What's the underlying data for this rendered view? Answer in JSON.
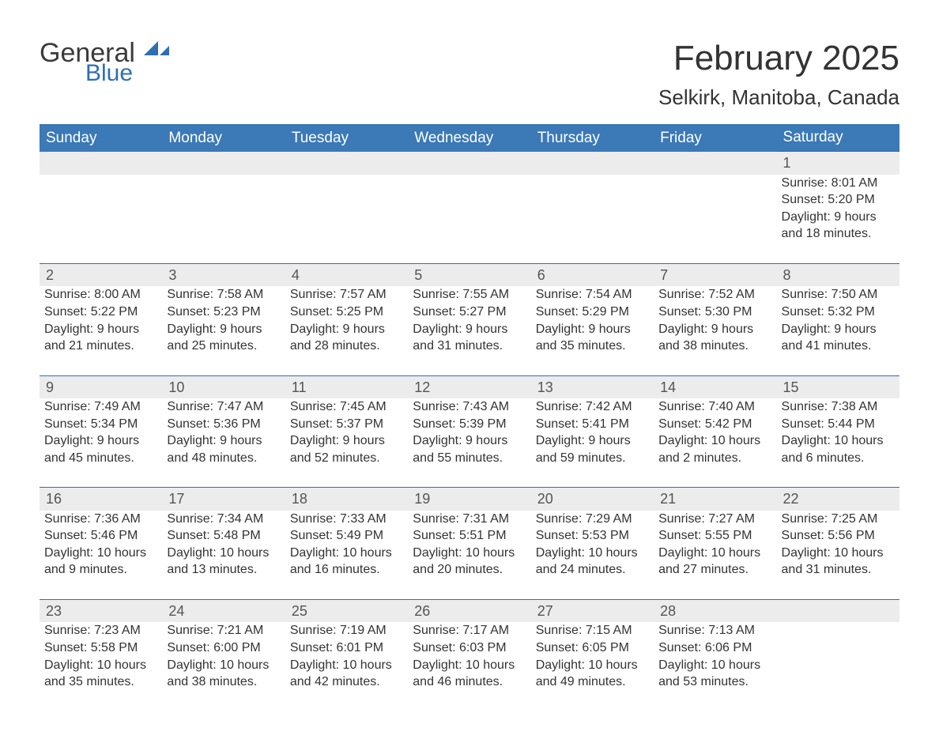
{
  "logo": {
    "word1": "General",
    "word2": "Blue"
  },
  "title": {
    "month": "February 2025",
    "location": "Selkirk, Manitoba, Canada"
  },
  "colors": {
    "header_bg": "#3b79b7",
    "header_text": "#ffffff",
    "row_divider": "#2d6fb5",
    "daynum_bg": "#ececec",
    "text": "#333333",
    "logo_blue": "#2d6fb5"
  },
  "columns": [
    "Sunday",
    "Monday",
    "Tuesday",
    "Wednesday",
    "Thursday",
    "Friday",
    "Saturday"
  ],
  "weeks": [
    [
      null,
      null,
      null,
      null,
      null,
      null,
      {
        "n": "1",
        "sunrise": "Sunrise: 8:01 AM",
        "sunset": "Sunset: 5:20 PM",
        "day1": "Daylight: 9 hours",
        "day2": "and 18 minutes."
      }
    ],
    [
      {
        "n": "2",
        "sunrise": "Sunrise: 8:00 AM",
        "sunset": "Sunset: 5:22 PM",
        "day1": "Daylight: 9 hours",
        "day2": "and 21 minutes."
      },
      {
        "n": "3",
        "sunrise": "Sunrise: 7:58 AM",
        "sunset": "Sunset: 5:23 PM",
        "day1": "Daylight: 9 hours",
        "day2": "and 25 minutes."
      },
      {
        "n": "4",
        "sunrise": "Sunrise: 7:57 AM",
        "sunset": "Sunset: 5:25 PM",
        "day1": "Daylight: 9 hours",
        "day2": "and 28 minutes."
      },
      {
        "n": "5",
        "sunrise": "Sunrise: 7:55 AM",
        "sunset": "Sunset: 5:27 PM",
        "day1": "Daylight: 9 hours",
        "day2": "and 31 minutes."
      },
      {
        "n": "6",
        "sunrise": "Sunrise: 7:54 AM",
        "sunset": "Sunset: 5:29 PM",
        "day1": "Daylight: 9 hours",
        "day2": "and 35 minutes."
      },
      {
        "n": "7",
        "sunrise": "Sunrise: 7:52 AM",
        "sunset": "Sunset: 5:30 PM",
        "day1": "Daylight: 9 hours",
        "day2": "and 38 minutes."
      },
      {
        "n": "8",
        "sunrise": "Sunrise: 7:50 AM",
        "sunset": "Sunset: 5:32 PM",
        "day1": "Daylight: 9 hours",
        "day2": "and 41 minutes."
      }
    ],
    [
      {
        "n": "9",
        "sunrise": "Sunrise: 7:49 AM",
        "sunset": "Sunset: 5:34 PM",
        "day1": "Daylight: 9 hours",
        "day2": "and 45 minutes."
      },
      {
        "n": "10",
        "sunrise": "Sunrise: 7:47 AM",
        "sunset": "Sunset: 5:36 PM",
        "day1": "Daylight: 9 hours",
        "day2": "and 48 minutes."
      },
      {
        "n": "11",
        "sunrise": "Sunrise: 7:45 AM",
        "sunset": "Sunset: 5:37 PM",
        "day1": "Daylight: 9 hours",
        "day2": "and 52 minutes."
      },
      {
        "n": "12",
        "sunrise": "Sunrise: 7:43 AM",
        "sunset": "Sunset: 5:39 PM",
        "day1": "Daylight: 9 hours",
        "day2": "and 55 minutes."
      },
      {
        "n": "13",
        "sunrise": "Sunrise: 7:42 AM",
        "sunset": "Sunset: 5:41 PM",
        "day1": "Daylight: 9 hours",
        "day2": "and 59 minutes."
      },
      {
        "n": "14",
        "sunrise": "Sunrise: 7:40 AM",
        "sunset": "Sunset: 5:42 PM",
        "day1": "Daylight: 10 hours",
        "day2": "and 2 minutes."
      },
      {
        "n": "15",
        "sunrise": "Sunrise: 7:38 AM",
        "sunset": "Sunset: 5:44 PM",
        "day1": "Daylight: 10 hours",
        "day2": "and 6 minutes."
      }
    ],
    [
      {
        "n": "16",
        "sunrise": "Sunrise: 7:36 AM",
        "sunset": "Sunset: 5:46 PM",
        "day1": "Daylight: 10 hours",
        "day2": "and 9 minutes."
      },
      {
        "n": "17",
        "sunrise": "Sunrise: 7:34 AM",
        "sunset": "Sunset: 5:48 PM",
        "day1": "Daylight: 10 hours",
        "day2": "and 13 minutes."
      },
      {
        "n": "18",
        "sunrise": "Sunrise: 7:33 AM",
        "sunset": "Sunset: 5:49 PM",
        "day1": "Daylight: 10 hours",
        "day2": "and 16 minutes."
      },
      {
        "n": "19",
        "sunrise": "Sunrise: 7:31 AM",
        "sunset": "Sunset: 5:51 PM",
        "day1": "Daylight: 10 hours",
        "day2": "and 20 minutes."
      },
      {
        "n": "20",
        "sunrise": "Sunrise: 7:29 AM",
        "sunset": "Sunset: 5:53 PM",
        "day1": "Daylight: 10 hours",
        "day2": "and 24 minutes."
      },
      {
        "n": "21",
        "sunrise": "Sunrise: 7:27 AM",
        "sunset": "Sunset: 5:55 PM",
        "day1": "Daylight: 10 hours",
        "day2": "and 27 minutes."
      },
      {
        "n": "22",
        "sunrise": "Sunrise: 7:25 AM",
        "sunset": "Sunset: 5:56 PM",
        "day1": "Daylight: 10 hours",
        "day2": "and 31 minutes."
      }
    ],
    [
      {
        "n": "23",
        "sunrise": "Sunrise: 7:23 AM",
        "sunset": "Sunset: 5:58 PM",
        "day1": "Daylight: 10 hours",
        "day2": "and 35 minutes."
      },
      {
        "n": "24",
        "sunrise": "Sunrise: 7:21 AM",
        "sunset": "Sunset: 6:00 PM",
        "day1": "Daylight: 10 hours",
        "day2": "and 38 minutes."
      },
      {
        "n": "25",
        "sunrise": "Sunrise: 7:19 AM",
        "sunset": "Sunset: 6:01 PM",
        "day1": "Daylight: 10 hours",
        "day2": "and 42 minutes."
      },
      {
        "n": "26",
        "sunrise": "Sunrise: 7:17 AM",
        "sunset": "Sunset: 6:03 PM",
        "day1": "Daylight: 10 hours",
        "day2": "and 46 minutes."
      },
      {
        "n": "27",
        "sunrise": "Sunrise: 7:15 AM",
        "sunset": "Sunset: 6:05 PM",
        "day1": "Daylight: 10 hours",
        "day2": "and 49 minutes."
      },
      {
        "n": "28",
        "sunrise": "Sunrise: 7:13 AM",
        "sunset": "Sunset: 6:06 PM",
        "day1": "Daylight: 10 hours",
        "day2": "and 53 minutes."
      },
      null
    ]
  ]
}
